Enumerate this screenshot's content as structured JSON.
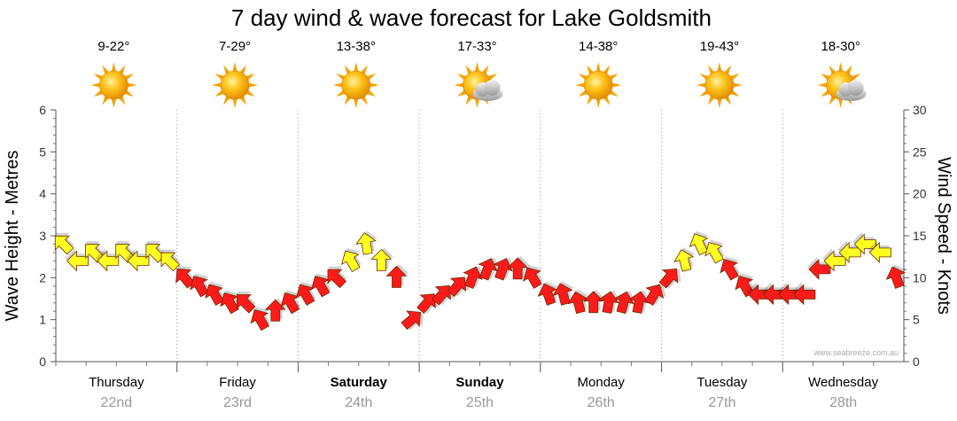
{
  "chart_data": {
    "type": "line",
    "title": "7 day wind & wave forecast for Lake Goldsmith",
    "ylabel_left": "Wave Height - Metres",
    "ylabel_right": "Wind Speed - Knots",
    "ylim_left": [
      0,
      6
    ],
    "ylim_right": [
      0,
      30
    ],
    "yticks_left": [
      "0",
      "1",
      "2",
      "3",
      "4",
      "5",
      "6"
    ],
    "yticks_right": [
      "0",
      "5",
      "10",
      "15",
      "20",
      "25",
      "30"
    ],
    "credit": "www.seabreeze.com.au",
    "days": [
      {
        "day": "Thursday",
        "date": "22nd",
        "temp": "9-22°",
        "weather": "sunny",
        "bold": false
      },
      {
        "day": "Friday",
        "date": "23rd",
        "temp": "7-29°",
        "weather": "sunny",
        "bold": false
      },
      {
        "day": "Saturday",
        "date": "24th",
        "temp": "13-38°",
        "weather": "sunny",
        "bold": true
      },
      {
        "day": "Sunday",
        "date": "25th",
        "temp": "17-33°",
        "weather": "partly-cloudy",
        "bold": true
      },
      {
        "day": "Monday",
        "date": "26th",
        "temp": "14-38°",
        "weather": "sunny",
        "bold": false
      },
      {
        "day": "Tuesday",
        "date": "27th",
        "temp": "19-43°",
        "weather": "sunny",
        "bold": false
      },
      {
        "day": "Wednesday",
        "date": "28th",
        "temp": "18-30°",
        "weather": "partly-cloudy",
        "bold": false
      }
    ],
    "wind_series": {
      "name": "Wind",
      "points_per_day": 8,
      "speed_knots": [
        14,
        12,
        13,
        12,
        13,
        12,
        13,
        12,
        10,
        9,
        8,
        7,
        7,
        5,
        6,
        7,
        8,
        9,
        10,
        12,
        14,
        12,
        10,
        5,
        7,
        8,
        9,
        10,
        11,
        11,
        11,
        10,
        8,
        8,
        7,
        7,
        7,
        7,
        7,
        8,
        10,
        12,
        14,
        13,
        11,
        9,
        8,
        8,
        8,
        8,
        11,
        12,
        13,
        14,
        13,
        10
      ],
      "direction_deg": [
        135,
        90,
        135,
        90,
        135,
        90,
        135,
        135,
        140,
        150,
        150,
        150,
        135,
        150,
        180,
        150,
        150,
        150,
        135,
        150,
        170,
        180,
        180,
        230,
        220,
        220,
        220,
        200,
        200,
        200,
        180,
        150,
        160,
        165,
        165,
        180,
        190,
        195,
        190,
        210,
        220,
        165,
        155,
        150,
        150,
        150,
        90,
        90,
        90,
        90,
        90,
        90,
        90,
        90,
        90,
        160
      ]
    }
  }
}
